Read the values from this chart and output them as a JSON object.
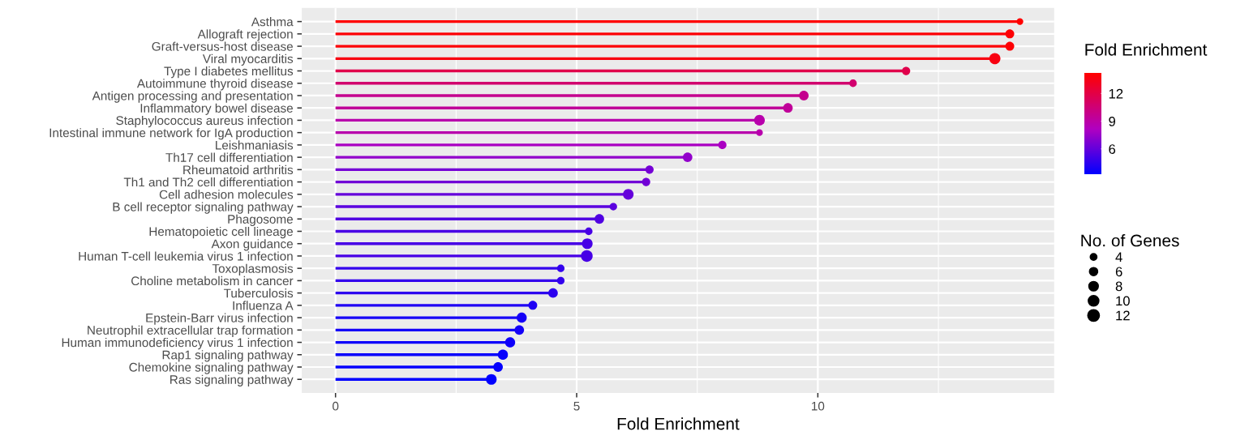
{
  "chart_data": {
    "type": "lollipop",
    "orientation": "horizontal",
    "xlabel": "Fold Enrichment",
    "clabel": "Fold Enrichment",
    "legend_title": "No. of Genes",
    "categories": [
      "Asthma",
      "Allograft rejection",
      "Graft-versus-host disease",
      "Viral myocarditis",
      "Type I diabetes mellitus",
      "Autoimmune thyroid disease",
      "Antigen processing and presentation",
      "Inflammatory bowel disease",
      "Staphylococcus aureus infection",
      "Intestinal immune network for IgA production",
      "Leishmaniasis",
      "Th17 cell differentiation",
      "Rheumatoid arthritis",
      "Th1 and Th2 cell differentiation",
      "Cell adhesion molecules",
      "B cell receptor signaling pathway",
      "Phagosome",
      "Hematopoietic cell lineage",
      "Axon guidance",
      "Human T-cell leukemia virus 1 infection",
      "Toxoplasmosis",
      "Choline metabolism in cancer",
      "Tuberculosis",
      "Influenza A",
      "Epstein-Barr virus infection",
      "Neutrophil extracellular trap formation",
      "Human immunodeficiency virus 1 infection",
      "Rap1 signaling pathway",
      "Chemokine signaling pathway",
      "Ras signaling pathway"
    ],
    "values": [
      14.19,
      13.98,
      13.98,
      13.67,
      11.83,
      10.73,
      9.71,
      9.38,
      8.79,
      8.79,
      8.02,
      7.3,
      6.51,
      6.44,
      6.07,
      5.76,
      5.47,
      5.25,
      5.22,
      5.21,
      4.67,
      4.67,
      4.51,
      4.09,
      3.86,
      3.81,
      3.62,
      3.47,
      3.37,
      3.23
    ],
    "cvalues": [
      14.19,
      13.98,
      13.98,
      13.67,
      11.83,
      10.73,
      9.71,
      9.38,
      8.79,
      8.79,
      8.02,
      7.3,
      6.51,
      6.44,
      6.07,
      5.76,
      5.47,
      5.25,
      5.22,
      5.21,
      4.67,
      4.67,
      4.51,
      4.09,
      3.86,
      3.81,
      3.62,
      3.47,
      3.37,
      3.23
    ],
    "sizes": [
      4,
      7,
      7,
      11,
      6,
      5,
      8,
      8,
      10,
      4,
      6,
      8,
      6,
      6,
      10,
      5,
      8,
      5,
      10,
      12,
      5,
      5,
      8,
      7,
      9,
      8,
      9,
      9,
      8,
      10
    ],
    "size_legend": [
      4,
      6,
      8,
      10,
      12
    ],
    "clim": [
      3.23,
      14.19
    ],
    "cticks": [
      6,
      9,
      12
    ],
    "xlim": [
      -0.7,
      14.9
    ],
    "xticks": [
      0,
      5,
      10
    ],
    "grid": true,
    "marker": "circle"
  }
}
